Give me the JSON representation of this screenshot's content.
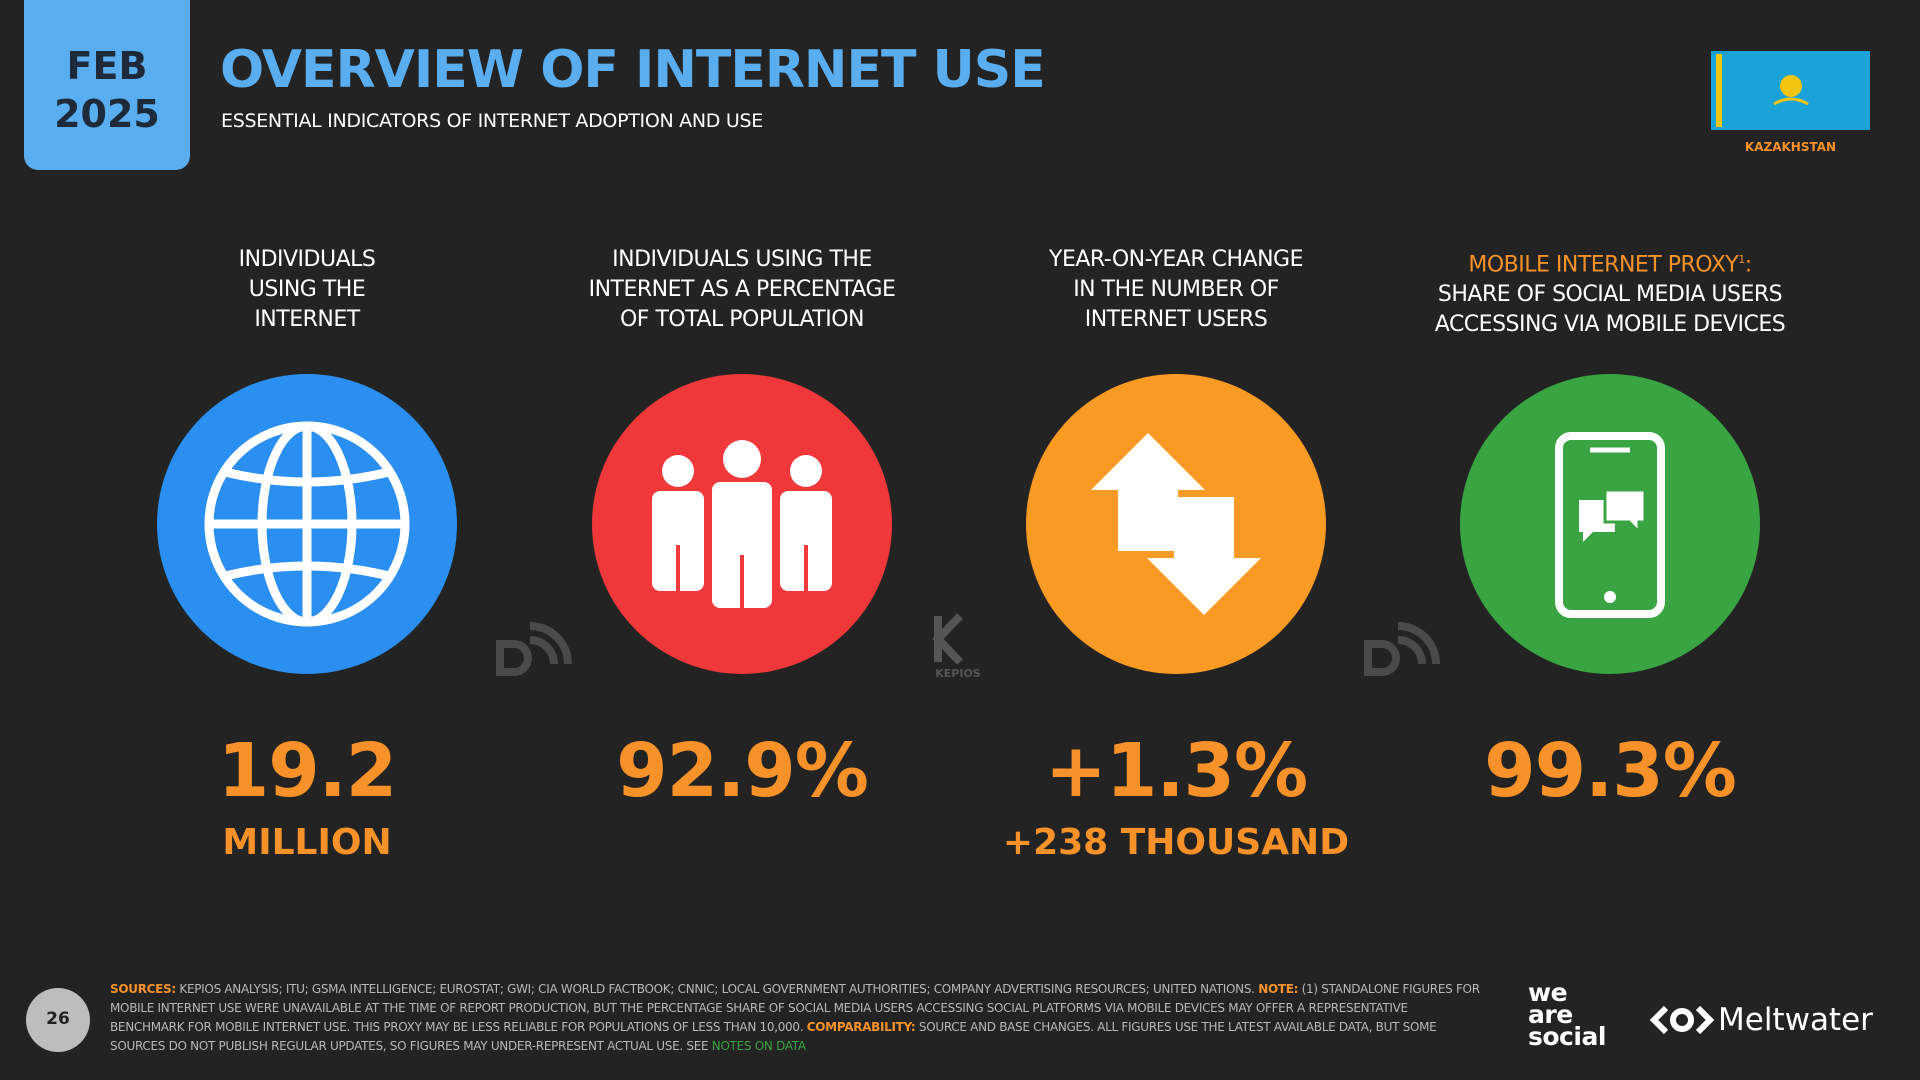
{
  "header": {
    "date_month": "FEB",
    "date_year": "2025",
    "title": "OVERVIEW OF INTERNET USE",
    "subtitle": "ESSENTIAL INDICATORS OF INTERNET ADOPTION AND USE",
    "country": "KAZAKHSTAN"
  },
  "cards": [
    {
      "label_lines": [
        "INDIVIDUALS",
        "USING THE",
        "INTERNET"
      ],
      "value": "19.2",
      "unit": "MILLION"
    },
    {
      "label_lines": [
        "INDIVIDUALS USING THE",
        "INTERNET AS A PERCENTAGE",
        "OF TOTAL POPULATION"
      ],
      "value": "92.9%"
    },
    {
      "label_lines": [
        "YEAR-ON-YEAR CHANGE",
        "IN THE NUMBER OF",
        "INTERNET USERS"
      ],
      "value": "+1.3%",
      "unit": "+238 THOUSAND"
    },
    {
      "label_highlight": "MOBILE INTERNET PROXY",
      "label_ref": "1",
      "label_highlight_end": ":",
      "label_lines": [
        "SHARE OF SOCIAL MEDIA USERS",
        "ACCESSING VIA MOBILE DEVICES"
      ],
      "value": "99.3%"
    }
  ],
  "watermark": "KEPIOS",
  "footer": {
    "page_number": "26",
    "sources_label": "SOURCES:",
    "sources_text": "KEPIOS ANALYSIS; ITU; GSMA INTELLIGENCE; EUROSTAT; GWI; CIA WORLD FACTBOOK; CNNIC; LOCAL GOVERNMENT AUTHORITIES; COMPANY ADVERTISING RESOURCES; UNITED NATIONS.",
    "note_label": "NOTE:",
    "note_text": "(1) STANDALONE FIGURES FOR MOBILE INTERNET USE WERE UNAVAILABLE AT THE TIME OF REPORT PRODUCTION, BUT THE PERCENTAGE SHARE OF SOCIAL MEDIA USERS ACCESSING SOCIAL PLATFORMS VIA MOBILE DEVICES MAY OFFER A REPRESENTATIVE BENCHMARK FOR MOBILE INTERNET USE. THIS PROXY MAY BE LESS RELIABLE FOR POPULATIONS OF LESS THAN 10,000.",
    "comparability_label": "COMPARABILITY:",
    "comparability_text": "SOURCE AND BASE CHANGES. ALL FIGURES USE THE LATEST AVAILABLE DATA, BUT SOME SOURCES DO NOT PUBLISH REGULAR UPDATES, SO FIGURES MAY UNDER-REPRESENT ACTUAL USE. SEE",
    "link": "NOTES ON DATA"
  },
  "logos": {
    "was_line1": "we",
    "was_line2": "are",
    "was_line3": "social",
    "meltwater": "Meltwater"
  }
}
